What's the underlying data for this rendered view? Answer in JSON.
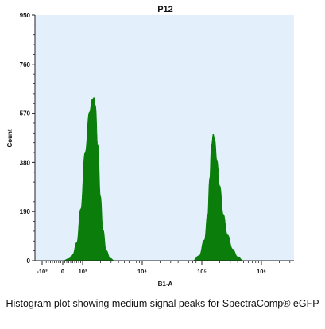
{
  "chart_data": {
    "type": "area",
    "title": "P12",
    "xlabel": "B1-A",
    "ylabel": "Count",
    "ylim": [
      0,
      950
    ],
    "yticks": [
      0,
      190,
      380,
      570,
      760,
      950
    ],
    "xscale": "biexponential",
    "xtick_labels": [
      "-10³",
      "0",
      "10³",
      "10⁴",
      "10⁵",
      "10⁶"
    ],
    "xtick_values": [
      -1000,
      0,
      1000,
      10000,
      100000,
      1000000
    ],
    "grid": false,
    "colors": {
      "plot_background": "#e3f0fb",
      "fill": "#0b7d0b"
    },
    "series": [
      {
        "x": [
          0,
          300,
          500,
          700,
          900,
          1100,
          1300,
          1450,
          1550,
          1650,
          1800,
          2000,
          2200,
          2500,
          2900,
          3400
        ],
        "values": [
          0,
          8,
          25,
          70,
          200,
          420,
          575,
          625,
          632,
          600,
          450,
          250,
          120,
          40,
          10,
          0
        ]
      },
      {
        "x": [
          70000,
          90000,
          110000,
          125000,
          135000,
          145000,
          155000,
          165000,
          180000,
          200000,
          230000,
          270000,
          330000,
          400000,
          500000
        ],
        "values": [
          0,
          20,
          80,
          180,
          320,
          450,
          490,
          470,
          390,
          290,
          180,
          100,
          45,
          15,
          0
        ]
      }
    ]
  },
  "caption": "Histogram plot showing medium signal peaks for SpectraComp® eGFP"
}
